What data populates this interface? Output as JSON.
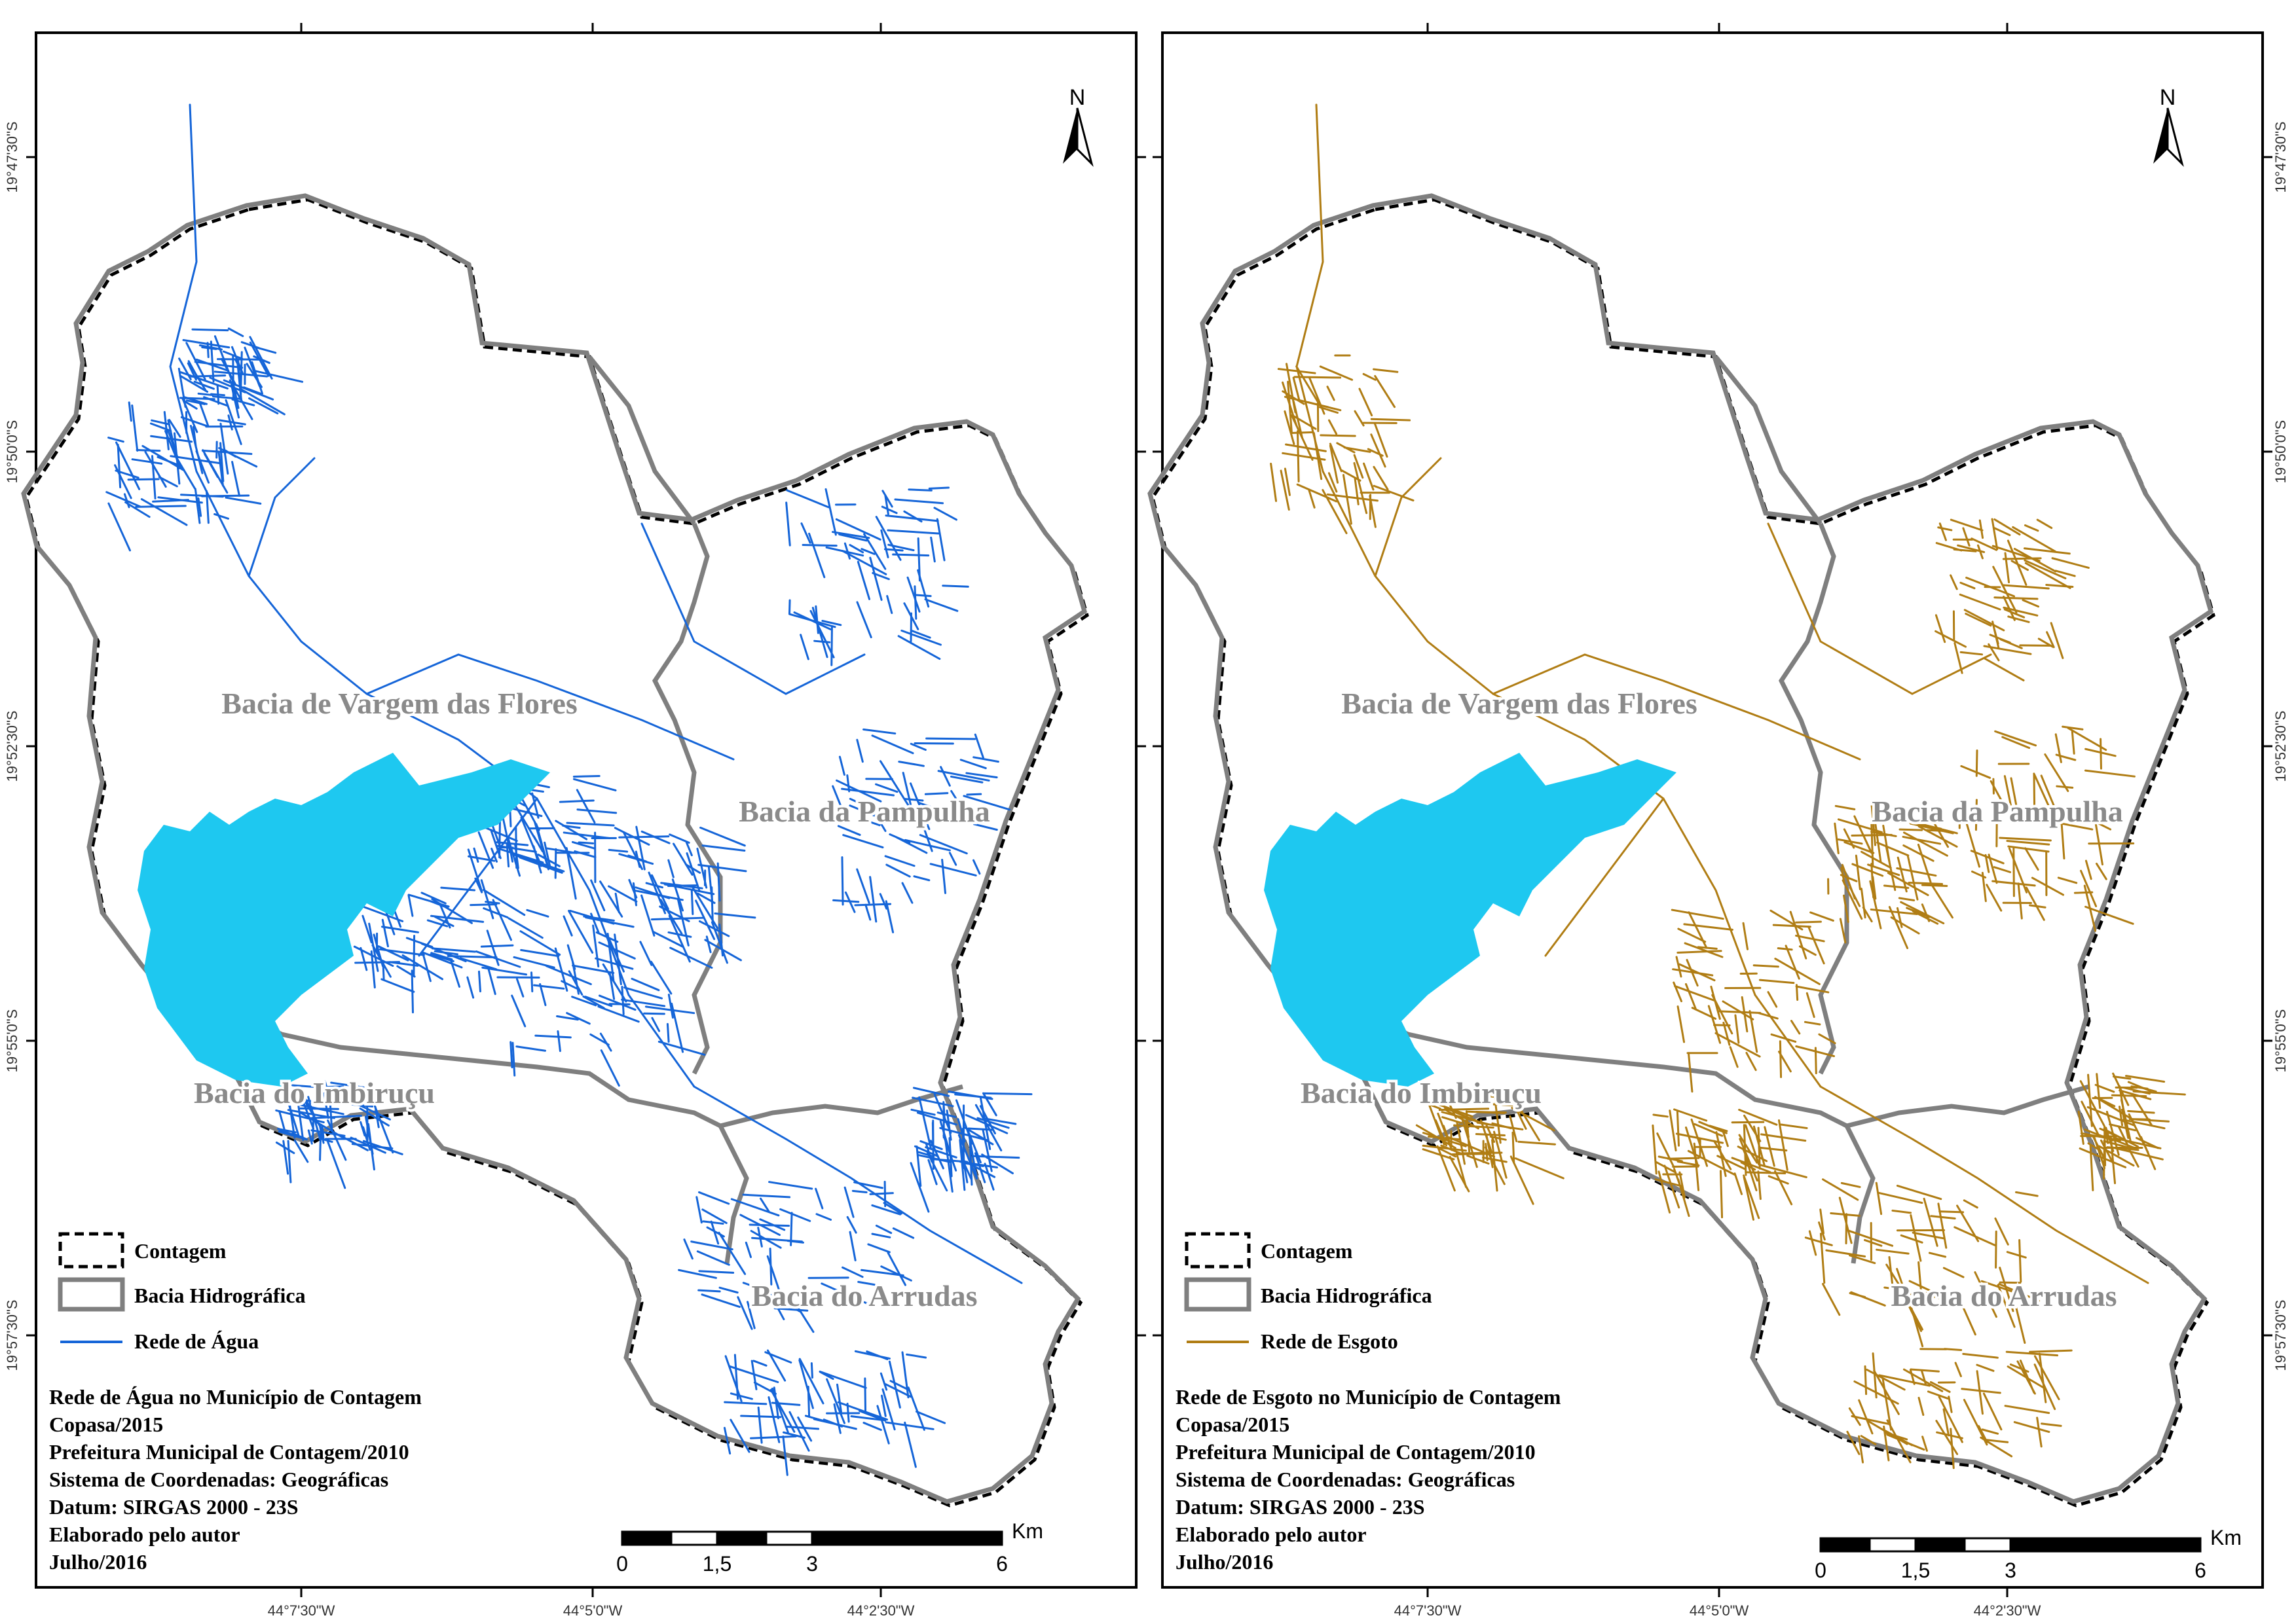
{
  "maps": [
    {
      "id": "water",
      "network_color": "#1565d8",
      "basins": [
        "Bacia de Vargem das Flores",
        "Bacia da Pampulha",
        "Bacia do Imbiruçu",
        "Bacia do Arrudas"
      ],
      "legend": {
        "boundary": "Contagem",
        "basin": "Bacia Hidrográfica",
        "network": "Rede de Água"
      },
      "info": [
        "Rede de Água no Município de Contagem",
        "Copasa/2015",
        "Prefeitura Municipal de Contagem/2010",
        "Sistema de Coordenadas: Geográficas",
        "Datum: SIRGAS 2000 - 23S",
        "Elaborado pelo autor",
        "Julho/2016"
      ],
      "scale": {
        "unit": "Km",
        "ticks": [
          "0",
          "1,5",
          "3",
          "6"
        ]
      },
      "north": "N",
      "lat_labels": [
        "19°47'30\"S",
        "19°50'0\"S",
        "19°52'30\"S",
        "19°55'0\"S",
        "19°57'30\"S"
      ],
      "lon_labels": [
        "44°7'30\"W",
        "44°5'0\"W",
        "44°2'30\"W"
      ]
    },
    {
      "id": "sewer",
      "network_color": "#b07d14",
      "basins": [
        "Bacia de Vargem das Flores",
        "Bacia da Pampulha",
        "Bacia do Imbiruçu",
        "Bacia do Arrudas"
      ],
      "legend": {
        "boundary": "Contagem",
        "basin": "Bacia Hidrográfica",
        "network": "Rede de Esgoto"
      },
      "info": [
        "Rede de Esgoto no Município de Contagem",
        "Copasa/2015",
        "Prefeitura Municipal de Contagem/2010",
        "Sistema de Coordenadas: Geográficas",
        "Datum: SIRGAS 2000 - 23S",
        "Elaborado pelo autor",
        "Julho/2016"
      ],
      "scale": {
        "unit": "Km",
        "ticks": [
          "0",
          "1,5",
          "3",
          "6"
        ]
      },
      "north": "N",
      "lat_labels": [
        "19°47'30\"S",
        "19°50'0\"S",
        "19°52'30\"S",
        "19°55'0\"S",
        "19°57'30\"S"
      ],
      "lon_labels": [
        "44°7'30\"W",
        "44°5'0\"W",
        "44°2'30\"W"
      ]
    }
  ],
  "colors": {
    "reservoir": "#1ec8f0",
    "basin_line": "#7f7f7f",
    "boundary": "#000000"
  }
}
